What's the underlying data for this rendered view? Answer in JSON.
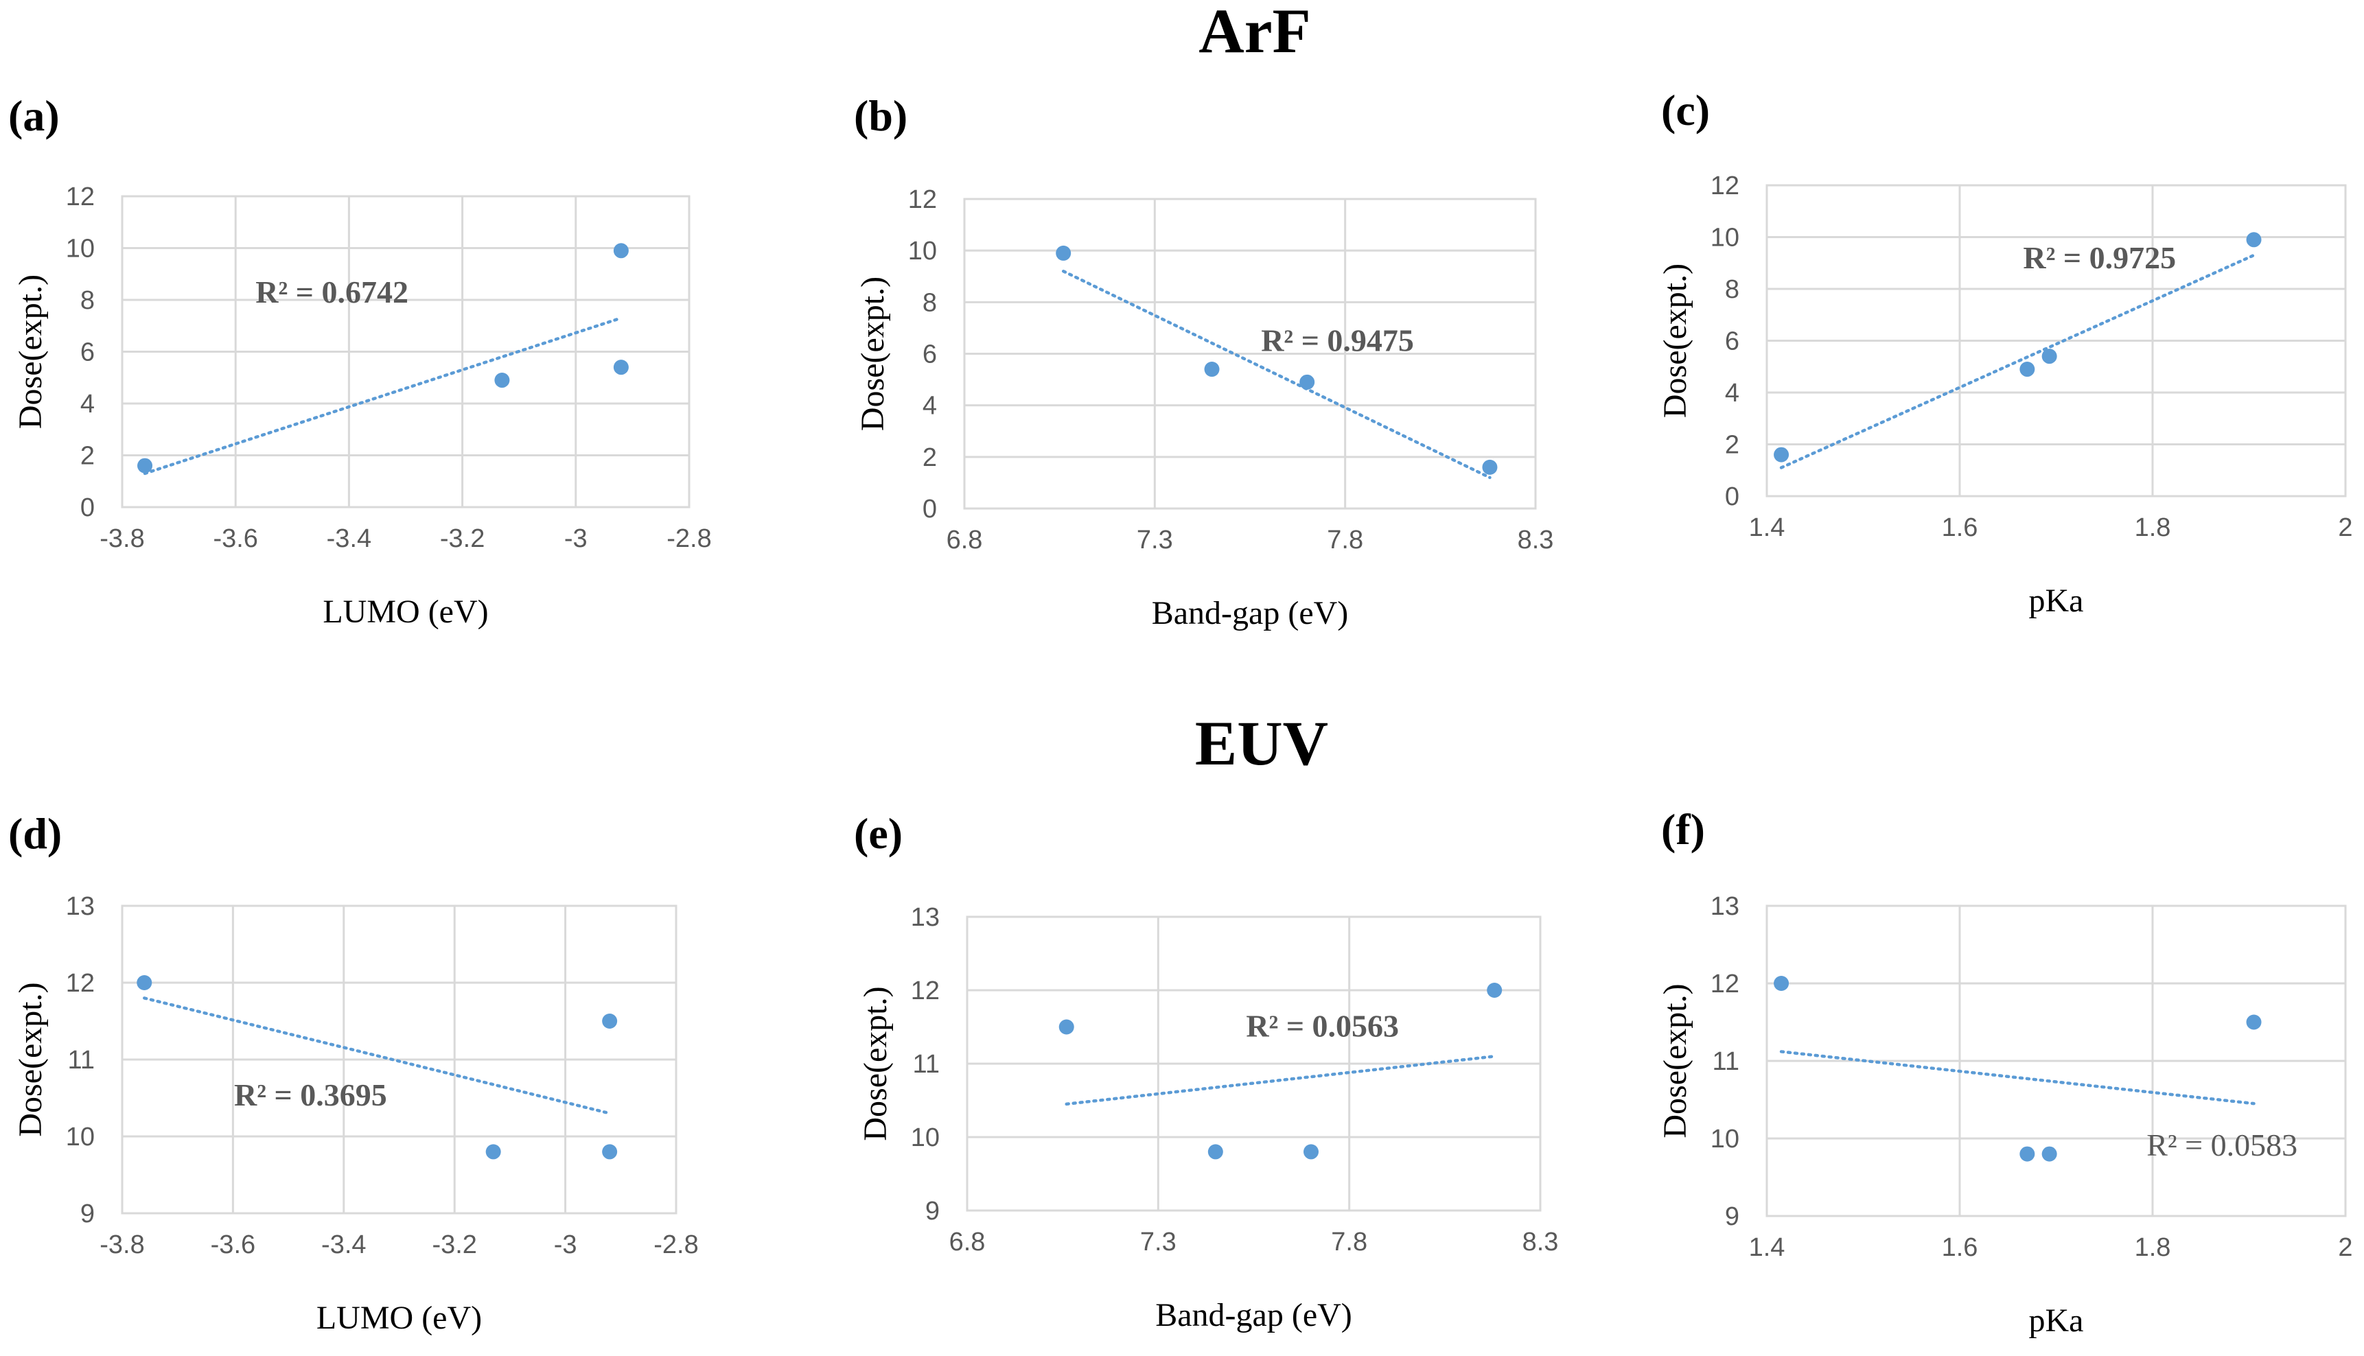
{
  "section_titles": {
    "top": "ArF",
    "bottom": "EUV"
  },
  "chart_data": [
    {
      "panel": "(a)",
      "type": "scatter",
      "title": "",
      "xlabel": "LUMO (eV)",
      "ylabel": "Dose(expt.)",
      "xlim": [
        -3.8,
        -2.8
      ],
      "ylim": [
        0,
        12
      ],
      "xticks": [
        -3.8,
        -3.6,
        -3.4,
        -3.2,
        -3,
        -2.8
      ],
      "xtick_labels": [
        "-3.8",
        "-3.6",
        "-3.4",
        "-3.2",
        "-3",
        "-2.8"
      ],
      "yticks": [
        0,
        2,
        4,
        6,
        8,
        10,
        12
      ],
      "ytick_labels": [
        "0",
        "2",
        "4",
        "6",
        "8",
        "10",
        "12"
      ],
      "x": [
        -3.76,
        -3.13,
        -2.92,
        -2.92
      ],
      "y": [
        1.6,
        4.9,
        9.9,
        5.4
      ],
      "trendline": {
        "x": [
          -3.76,
          -2.92
        ],
        "y": [
          1.3,
          7.3
        ]
      },
      "annotation": "R² = 0.6742",
      "annotation_pos": [
        -3.43,
        7.9
      ],
      "annotation_bold": true
    },
    {
      "panel": "(b)",
      "type": "scatter",
      "title": "",
      "xlabel": "Band-gap (eV)",
      "ylabel": "Dose(expt.)",
      "xlim": [
        6.8,
        8.3
      ],
      "ylim": [
        0,
        12
      ],
      "xticks": [
        6.8,
        7.3,
        7.8,
        8.3
      ],
      "xtick_labels": [
        "6.8",
        "7.3",
        "7.8",
        "8.3"
      ],
      "yticks": [
        0,
        2,
        4,
        6,
        8,
        10,
        12
      ],
      "ytick_labels": [
        "0",
        "2",
        "4",
        "6",
        "8",
        "10",
        "12"
      ],
      "x": [
        7.06,
        7.45,
        7.7,
        8.18
      ],
      "y": [
        9.9,
        5.4,
        4.9,
        1.6
      ],
      "trendline": {
        "x": [
          7.06,
          8.18
        ],
        "y": [
          9.2,
          1.2
        ]
      },
      "annotation": "R² = 0.9475",
      "annotation_pos": [
        7.78,
        6.1
      ],
      "annotation_bold": true
    },
    {
      "panel": "(c)",
      "type": "scatter",
      "title": "",
      "xlabel": "pKa",
      "ylabel": "Dose(expt.)",
      "xlim": [
        1.4,
        2.0
      ],
      "ylim": [
        0,
        12
      ],
      "xticks": [
        1.4,
        1.6,
        1.8,
        2.0
      ],
      "xtick_labels": [
        "1.4",
        "1.6",
        "1.8",
        "2"
      ],
      "yticks": [
        0,
        2,
        4,
        6,
        8,
        10,
        12
      ],
      "ytick_labels": [
        "0",
        "2",
        "4",
        "6",
        "8",
        "10",
        "12"
      ],
      "x": [
        1.415,
        1.67,
        1.693,
        1.905
      ],
      "y": [
        1.6,
        4.9,
        5.4,
        9.9
      ],
      "trendline": {
        "x": [
          1.415,
          1.905
        ],
        "y": [
          1.1,
          9.3
        ]
      },
      "annotation": "R² = 0.9725",
      "annotation_pos": [
        1.745,
        8.8
      ],
      "annotation_bold": true
    },
    {
      "panel": "(d)",
      "type": "scatter",
      "title": "",
      "xlabel": "LUMO (eV)",
      "ylabel": "Dose(expt.)",
      "xlim": [
        -3.8,
        -2.8
      ],
      "ylim": [
        9,
        13
      ],
      "xticks": [
        -3.8,
        -3.6,
        -3.4,
        -3.2,
        -3,
        -2.8
      ],
      "xtick_labels": [
        "-3.8",
        "-3.6",
        "-3.4",
        "-3.2",
        "-3",
        "-2.8"
      ],
      "yticks": [
        9,
        10,
        11,
        12,
        13
      ],
      "ytick_labels": [
        "9",
        "10",
        "11",
        "12",
        "13"
      ],
      "x": [
        -3.76,
        -3.13,
        -2.92,
        -2.92
      ],
      "y": [
        12.0,
        9.8,
        11.5,
        9.8
      ],
      "trendline": {
        "x": [
          -3.76,
          -2.92
        ],
        "y": [
          11.8,
          10.3
        ]
      },
      "annotation": "R² = 0.3695",
      "annotation_pos": [
        -3.46,
        10.4
      ],
      "annotation_bold": true
    },
    {
      "panel": "(e)",
      "type": "scatter",
      "title": "",
      "xlabel": "Band-gap (eV)",
      "ylabel": "Dose(expt.)",
      "xlim": [
        6.8,
        8.3
      ],
      "ylim": [
        9,
        13
      ],
      "xticks": [
        6.8,
        7.3,
        7.8,
        8.3
      ],
      "xtick_labels": [
        "6.8",
        "7.3",
        "7.8",
        "8.3"
      ],
      "yticks": [
        9,
        10,
        11,
        12,
        13
      ],
      "ytick_labels": [
        "9",
        "10",
        "11",
        "12",
        "13"
      ],
      "x": [
        7.06,
        7.45,
        7.7,
        8.18
      ],
      "y": [
        11.5,
        9.8,
        9.8,
        12.0
      ],
      "trendline": {
        "x": [
          7.06,
          8.18
        ],
        "y": [
          10.45,
          11.1
        ]
      },
      "annotation": "R² = 0.0563",
      "annotation_pos": [
        7.73,
        11.37
      ],
      "annotation_bold": true
    },
    {
      "panel": "(f)",
      "type": "scatter",
      "title": "",
      "xlabel": "pKa",
      "ylabel": "Dose(expt.)",
      "xlim": [
        1.4,
        2.0
      ],
      "ylim": [
        9,
        13
      ],
      "xticks": [
        1.4,
        1.6,
        1.8,
        2.0
      ],
      "xtick_labels": [
        "1.4",
        "1.6",
        "1.8",
        "2"
      ],
      "yticks": [
        9,
        10,
        11,
        12,
        13
      ],
      "ytick_labels": [
        "9",
        "10",
        "11",
        "12",
        "13"
      ],
      "x": [
        1.415,
        1.67,
        1.693,
        1.905
      ],
      "y": [
        12.0,
        9.8,
        9.8,
        11.5
      ],
      "trendline": {
        "x": [
          1.415,
          1.905
        ],
        "y": [
          11.12,
          10.45
        ]
      },
      "annotation": "R² = 0.0583",
      "annotation_pos": [
        1.872,
        9.78
      ],
      "annotation_bold": false
    }
  ]
}
